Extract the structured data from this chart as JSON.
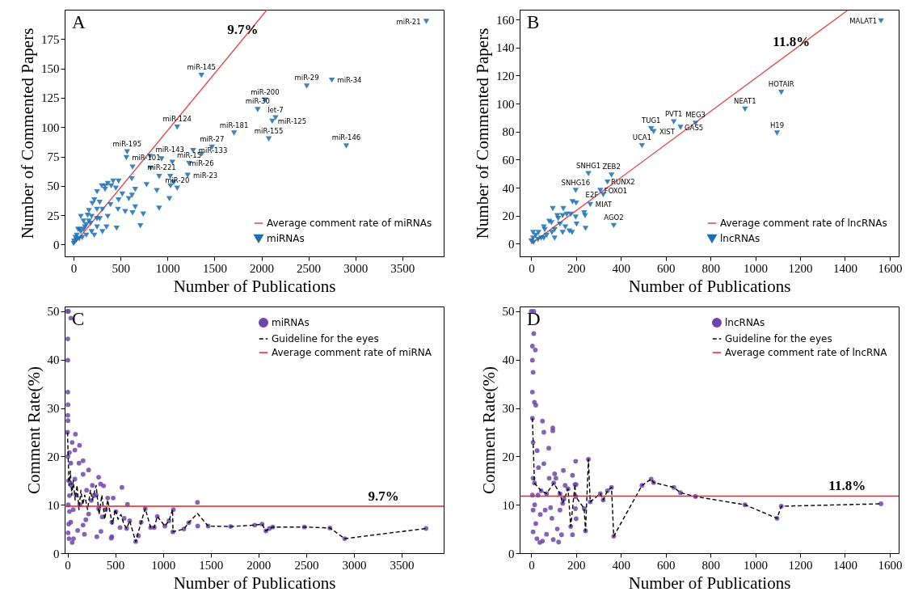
{
  "chart_data": [
    {
      "type": "scatter",
      "xlabel": "Number of Publications",
      "ylabel": "Number of Commented Papers",
      "xlim": [
        -95,
        3940
      ],
      "ylim": [
        -10,
        200
      ],
      "xticks": [
        0,
        500,
        1000,
        1500,
        2000,
        2500,
        3000,
        3500
      ],
      "yticks": [
        0,
        25,
        50,
        75,
        100,
        125,
        150,
        175
      ],
      "legend": "bottom right",
      "series": [
        {
          "type": "line",
          "name": "Average comment rate of miRNAs",
          "color": "#e34a4a",
          "x": [
            0,
            2060
          ],
          "values": [
            0,
            200
          ]
        },
        {
          "name": "miRNAs",
          "color": "#1a6fb5",
          "marker": "triangle",
          "x": [
            3755,
            1361,
            2482,
            2749,
            2038,
            1960,
            2150,
            2115,
            1103,
            1708,
            2078,
            2903,
            570,
            562,
            814,
            1273,
            1473,
            1364,
            937,
            1052,
            1230,
            1215,
            1103,
            1066,
            1032,
            628,
            820,
            620,
            911,
            1029,
            777,
            886,
            1020,
            911,
            742,
            711,
            458,
            656,
            628,
            550,
            473,
            656,
            622,
            588,
            519,
            364,
            421,
            479,
            335,
            393,
            307,
            350,
            249,
            192,
            135,
            77,
            20,
            0,
            221,
            278,
            335,
            163,
            77,
            106,
            48,
            221,
            278,
            364,
            479,
            307,
            6,
            34,
            63,
            106,
            163,
            192,
            249,
            135,
            92,
            150,
            200,
            250,
            300,
            400,
            450,
            120,
            60,
            30,
            250,
            180
          ],
          "values": [
            190,
            144,
            135,
            140,
            123,
            115,
            108,
            105,
            100,
            95,
            90,
            84,
            79,
            74,
            75,
            80,
            83,
            77,
            73,
            70,
            69,
            59,
            48,
            53,
            50,
            66,
            65,
            56,
            58,
            58,
            51,
            46,
            39,
            31,
            26,
            16,
            14,
            32,
            27,
            28,
            30,
            47,
            42,
            39,
            43,
            52,
            54,
            54,
            50,
            34,
            11,
            15,
            22,
            24,
            17,
            11,
            6,
            1,
            38,
            36,
            47,
            29,
            24,
            20,
            13,
            8,
            22,
            24,
            38,
            30,
            3,
            8,
            13,
            13,
            20,
            11,
            30,
            8,
            6,
            25,
            35,
            45,
            50,
            50,
            48,
            15,
            5,
            4,
            15,
            18
          ]
        }
      ],
      "annotations": [
        "A",
        {
          "text": "9.7%",
          "x": 1800,
          "y": 174.6
        },
        {
          "text": "miR-21",
          "x": 3755,
          "y": 190
        },
        {
          "text": "miR-145",
          "x": 1361,
          "y": 144
        },
        {
          "text": "miR-29",
          "x": 2482,
          "y": 135
        },
        {
          "text": "miR-34",
          "x": 2749,
          "y": 140
        },
        {
          "text": "miR-200",
          "x": 2038,
          "y": 123
        },
        {
          "text": "miR-30",
          "x": 1960,
          "y": 115
        },
        {
          "text": "let-7",
          "x": 2150,
          "y": 108
        },
        {
          "text": "miR-125",
          "x": 2115,
          "y": 105
        },
        {
          "text": "miR-124",
          "x": 1103,
          "y": 100
        },
        {
          "text": "miR-181",
          "x": 1708,
          "y": 95
        },
        {
          "text": "miR-155",
          "x": 2078,
          "y": 90
        },
        {
          "text": "miR-146",
          "x": 2903,
          "y": 84
        },
        {
          "text": "miR-195",
          "x": 570,
          "y": 79
        },
        {
          "text": "miR-101",
          "x": 562,
          "y": 74
        },
        {
          "text": "miR-143",
          "x": 814,
          "y": 75
        },
        {
          "text": "miR-133",
          "x": 1273,
          "y": 80
        },
        {
          "text": "miR-27",
          "x": 1473,
          "y": 83
        },
        {
          "text": "miR-26",
          "x": 1364,
          "y": 77
        },
        {
          "text": "miR-221",
          "x": 937,
          "y": 73
        },
        {
          "text": "miR-15",
          "x": 1230,
          "y": 69
        },
        {
          "text": "miR-23",
          "x": 1215,
          "y": 59
        },
        {
          "text": "miR-20",
          "x": 1103,
          "y": 48
        }
      ]
    },
    {
      "type": "scatter",
      "xlabel": "Number of Publications",
      "ylabel": "Number of Commented Papers",
      "xlim": [
        -52,
        1640
      ],
      "ylim": [
        -9,
        167
      ],
      "xticks": [
        0,
        200,
        400,
        600,
        800,
        1000,
        1200,
        1400,
        1600
      ],
      "yticks": [
        0,
        20,
        40,
        60,
        80,
        100,
        120,
        140,
        160
      ],
      "legend": "bottom right",
      "series": [
        {
          "type": "line",
          "name": "Average comment rate of lncRNAs",
          "color": "#e34a4a",
          "x": [
            0,
            1412
          ],
          "values": [
            0,
            166.6
          ]
        },
        {
          "name": "lncRNAs",
          "color": "#1a6fb5",
          "marker": "triangle",
          "x": [
            1561,
            1116,
            954,
            1097,
            636,
            733,
            666,
            535,
            546,
            494,
            255,
            358,
            340,
            198,
            308,
            321,
            263,
            368,
            184,
            200,
            96,
            143,
            236,
            240,
            198,
            202,
            242,
            170,
            182,
            158,
            116,
            80,
            56,
            32,
            8,
            0,
            104,
            128,
            68,
            44,
            20,
            92,
            140,
            152,
            8,
            56,
            104,
            140,
            176,
            30,
            60,
            90,
            120,
            10
          ],
          "values": [
            159,
            108,
            96,
            79,
            87,
            86,
            83,
            82,
            80,
            70,
            50,
            49,
            44,
            38,
            38,
            35,
            28,
            13,
            30,
            29,
            25,
            25,
            22,
            20,
            19,
            14,
            11,
            9,
            8,
            21,
            20,
            16,
            12,
            8,
            4,
            2,
            10,
            14,
            6,
            4,
            6,
            8,
            8,
            12,
            8,
            4,
            4,
            20,
            21,
            3,
            10,
            15,
            18,
            1
          ]
        }
      ],
      "annotations": [
        "B",
        {
          "text": "11.8%",
          "x": 1161,
          "y": 137
        },
        {
          "text": "MALAT1",
          "x": 1561,
          "y": 159
        },
        {
          "text": "HOTAIR",
          "x": 1116,
          "y": 108
        },
        {
          "text": "NEAT1",
          "x": 954,
          "y": 96
        },
        {
          "text": "H19",
          "x": 1097,
          "y": 79
        },
        {
          "text": "PVT1",
          "x": 636,
          "y": 87
        },
        {
          "text": "MEG3",
          "x": 733,
          "y": 86
        },
        {
          "text": "GAS5",
          "x": 666,
          "y": 83
        },
        {
          "text": "TUG1",
          "x": 535,
          "y": 82
        },
        {
          "text": "XIST",
          "x": 546,
          "y": 80
        },
        {
          "text": "UCA1",
          "x": 494,
          "y": 70
        },
        {
          "text": "SNHG1",
          "x": 255,
          "y": 50
        },
        {
          "text": "ZEB2",
          "x": 358,
          "y": 49
        },
        {
          "text": "RUNX2",
          "x": 340,
          "y": 44
        },
        {
          "text": "SNHG16",
          "x": 198,
          "y": 38
        },
        {
          "text": "FOXO1",
          "x": 308,
          "y": 38
        },
        {
          "text": "E2F",
          "x": 321,
          "y": 35
        },
        {
          "text": "MIAT",
          "x": 263,
          "y": 28
        },
        {
          "text": "AGO2",
          "x": 368,
          "y": 13
        }
      ]
    },
    {
      "type": "scatter",
      "xlabel": "Number of Publications",
      "ylabel": "Comment Rate(%)",
      "xlim": [
        -30,
        3940
      ],
      "ylim": [
        0,
        51
      ],
      "xticks": [
        0,
        500,
        1000,
        1500,
        2000,
        2500,
        3000,
        3500
      ],
      "yticks": [
        0,
        10,
        20,
        30,
        40,
        50
      ],
      "legend": "top right",
      "series": [
        {
          "name": "miRNAs",
          "color": "#6e46ab",
          "marker": "circle",
          "x": [
            3755,
            2903,
            2749,
            2482,
            2150,
            2115,
            2078,
            2038,
            1960,
            1708,
            1473,
            1364,
            1361,
            1270,
            1219,
            1109,
            1103,
            1063,
            1020,
            940,
            908,
            871,
            814,
            771,
            742,
            714,
            651,
            628,
            620,
            570,
            458,
            0,
            10,
            34,
            3,
            3,
            3,
            5,
            3,
            5,
            0,
            83,
            126,
            163,
            221,
            326,
            346,
            479,
            378,
            326,
            221,
            192,
            163,
            106,
            63,
            49,
            177,
            307,
            350,
            464,
            550,
            464,
            593,
            364,
            249,
            77,
            34,
            20,
            20,
            20,
            34,
            6,
            77,
            163,
            49,
            120,
            278,
            421,
            507,
            5,
            10,
            8,
            12,
            15,
            40,
            60,
            90,
            130,
            200,
            260,
            300,
            400
          ],
          "values": [
            5.1,
            3.0,
            5.2,
            5.4,
            5.4,
            5.1,
            4.6,
            6.0,
            5.8,
            5.5,
            5.6,
            5.6,
            10.5,
            6.3,
            5.0,
            9.0,
            4.4,
            6.7,
            5.6,
            7.6,
            5.3,
            5.3,
            9.2,
            6.4,
            3.6,
            2.4,
            6.7,
            10.1,
            5.1,
            13.6,
            3.1,
            50,
            50,
            48.6,
            44.3,
            39.9,
            33.3,
            30.7,
            28.5,
            27.4,
            25,
            24.6,
            22.3,
            19.1,
            17.2,
            15.7,
            14.3,
            11.4,
            13.9,
            9.2,
            8.1,
            6.9,
            5.8,
            4.7,
            3.0,
            2.2,
            3.9,
            3.4,
            4.5,
            3.4,
            5.3,
            6.4,
            7.2,
            7.5,
            10.9,
            15.3,
            18.6,
            20.8,
            11.9,
            8.6,
            6.4,
            4.2,
            21.3,
            16.3,
            22.9,
            18.6,
            11.9,
            11.4,
            8.6,
            20,
            15,
            10,
            6,
            3,
            14,
            9,
            12,
            10,
            13,
            14,
            12,
            9
          ]
        },
        {
          "type": "line",
          "name": "Guideline for the eyes",
          "color": "#000000",
          "line_style": "dashed",
          "x": [
            0,
            15,
            30,
            45,
            60,
            80,
            100,
            120,
            140,
            160,
            180,
            210,
            240,
            260,
            300,
            330,
            360,
            390,
            420,
            450,
            470,
            500,
            530,
            560,
            590,
            620,
            651,
            714,
            771,
            814,
            871,
            908,
            940,
            1020,
            1063,
            1100,
            1105,
            1219,
            1270,
            1361,
            1473,
            1708,
            1960,
            2038,
            2078,
            2115,
            2150,
            2482,
            2749,
            2903,
            3755
          ],
          "values": [
            25,
            14,
            17,
            12,
            15,
            11,
            14,
            9,
            13,
            10,
            12,
            9,
            13,
            11,
            14,
            8,
            12,
            7,
            11,
            8,
            6,
            9,
            7,
            8,
            6,
            5.1,
            6.7,
            2.4,
            6.4,
            9.2,
            5.3,
            5.3,
            7.6,
            5.6,
            6.7,
            9.0,
            4.4,
            5.0,
            6.3,
            8.2,
            5.6,
            5.5,
            5.8,
            6.0,
            4.6,
            5.1,
            5.4,
            5.4,
            5.2,
            3.0,
            5.1
          ]
        },
        {
          "type": "line",
          "name": "Average comment rate of miRNA",
          "color": "#ee1c25",
          "x": [
            -30,
            3940
          ],
          "values": [
            9.7,
            9.7
          ]
        }
      ],
      "annotations": [
        "C",
        {
          "text": "9.7%",
          "x": 3310,
          "y": 9.7
        }
      ]
    },
    {
      "type": "scatter",
      "xlabel": "Number of Publications",
      "ylabel": "Comment Rate(%)",
      "xlim": [
        -52,
        1640
      ],
      "ylim": [
        0,
        51
      ],
      "xticks": [
        0,
        200,
        400,
        600,
        800,
        1000,
        1200,
        1400,
        1600
      ],
      "yticks": [
        0,
        10,
        20,
        30,
        40,
        50
      ],
      "legend": "top right",
      "series": [
        {
          "name": "lncRNAs",
          "color": "#6e46ab",
          "marker": "circle",
          "x": [
            5,
            14,
            44,
            68,
            100,
            128,
            140,
            164,
            176,
            195,
            198,
            236,
            242,
            255,
            263,
            308,
            321,
            340,
            358,
            368,
            494,
            535,
            546,
            636,
            666,
            733,
            954,
            1097,
            1116,
            1561,
            0,
            11,
            11,
            5,
            18,
            5,
            8,
            5,
            14,
            20,
            50,
            96,
            96,
            78,
            56,
            198,
            184,
            143,
            104,
            200,
            151,
            197,
            200,
            184,
            135,
            122,
            98,
            68,
            50,
            38,
            116,
            92,
            86,
            56,
            26,
            8,
            32,
            8,
            8,
            20,
            8,
            62,
            80,
            110,
            128,
            146,
            5,
            15,
            30,
            40,
            25
          ],
          "values": [
            27.9,
            14.5,
            12.9,
            12.3,
            14.5,
            12.3,
            10.3,
            13.3,
            5.5,
            14.2,
            11.7,
            9.2,
            4.6,
            19.4,
            10.6,
            12.3,
            11.0,
            12.9,
            13.6,
            3.5,
            14.0,
            15.3,
            14.6,
            13.6,
            12.5,
            11.7,
            10.0,
            7.2,
            9.7,
            10.2,
            50,
            50,
            45.4,
            42.8,
            42,
            39.9,
            37.4,
            33.3,
            31.2,
            30.6,
            27.3,
            25.9,
            25.3,
            21.7,
            25,
            19,
            16.1,
            17.1,
            16.4,
            14.2,
            14,
            9.2,
            7.1,
            3.8,
            3.8,
            2.3,
            2.8,
            3.9,
            2.5,
            2.2,
            5,
            7.2,
            9.4,
            18.5,
            21.2,
            22.9,
            17.7,
            15.5,
            8.9,
            6.1,
            4.4,
            8.9,
            15.5,
            15.5,
            8.9,
            11.2,
            12,
            10,
            12,
            8,
            3
          ]
        },
        {
          "type": "line",
          "name": "Guideline for the eyes",
          "color": "#000000",
          "line_style": "dashed",
          "x": [
            5,
            14,
            44,
            68,
            100,
            128,
            140,
            164,
            176,
            195,
            198,
            236,
            242,
            255,
            263,
            308,
            321,
            340,
            358,
            368,
            494,
            535,
            546,
            636,
            666,
            733,
            954,
            1097,
            1116,
            1561
          ],
          "values": [
            27.9,
            14.5,
            12.9,
            12.3,
            14.5,
            12.3,
            10.3,
            13.3,
            5.5,
            14.2,
            11.7,
            9.2,
            4.6,
            19.4,
            10.6,
            12.3,
            11.0,
            12.9,
            13.6,
            3.5,
            14.0,
            15.3,
            14.6,
            13.6,
            12.5,
            11.7,
            10.0,
            7.2,
            9.7,
            10.2
          ]
        },
        {
          "type": "line",
          "name": "Average comment rate of lncRNA",
          "color": "#ee1c25",
          "x": [
            -52,
            1640
          ],
          "values": [
            11.8,
            11.8
          ]
        }
      ],
      "annotations": [
        "D",
        {
          "text": "11.8%",
          "x": 1410,
          "y": 11.8
        }
      ]
    }
  ]
}
